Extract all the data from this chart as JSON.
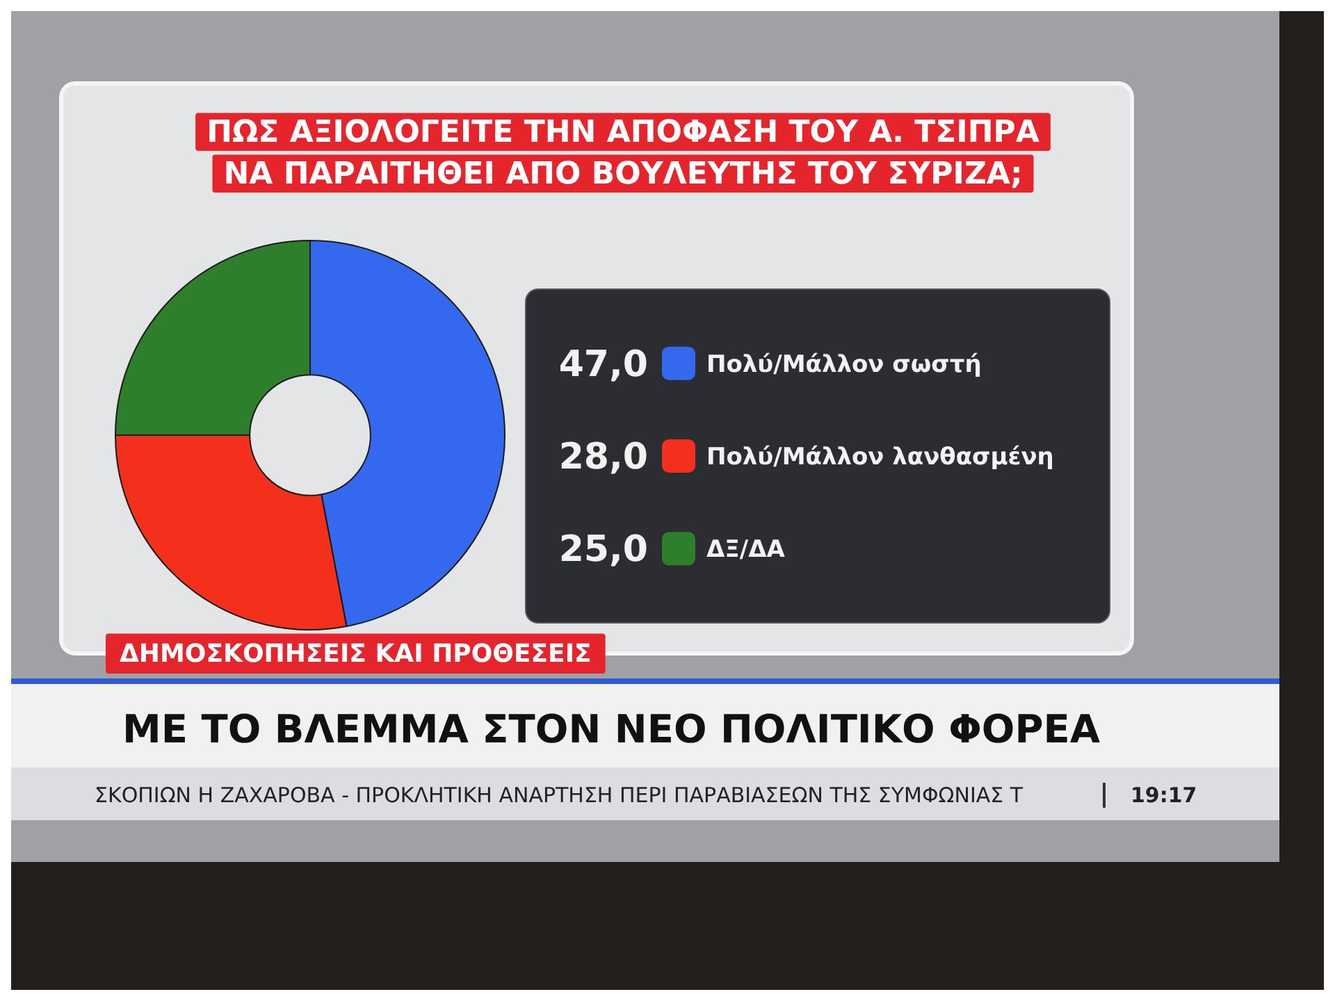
{
  "chart_data": {
    "type": "donut",
    "title": "ΠΩΣ ΑΞΙΟΛΟΓΕΙΤΕ ΤΗΝ ΑΠΟΦΑΣΗ ΤΟΥ Α. ΤΣΙΠΡΑ ΝΑ ΠΑΡΑΙΤΗΘΕΙ ΑΠΟ ΒΟΥΛΕΥΤΗΣ ΤΟΥ ΣΥΡΙΖΑ;",
    "categories": [
      "Πολύ/Μάλλον σωστή",
      "Πολύ/Μάλλον λανθασμένη",
      "ΔΞ/ΔΑ"
    ],
    "values": [
      47,
      28,
      25
    ],
    "value_labels": [
      "47,0",
      "28,0",
      "25,0"
    ],
    "colors": [
      "#3468ee",
      "#f4301d",
      "#2d7f2b"
    ],
    "legend": "right",
    "annotations": [
      "ΔΗΜΟΣΚΟΠΗΣΕΙΣ ΚΑΙ ΠΡΟΘΕΣΕΙΣ",
      "ΜΕ ΤΟ ΒΛΕΜΜΑ ΣΤΟΝ ΝΕΟ ΠΟΛΙΤΙΚΟ ΦΟΡΕΑ",
      "ΣΚΟΠΙΩΝ Η ΖΑΧΑΡΟΒΑ - ΠΡΟΚΛΗΤΙΚΗ ΑΝΑΡΤΗΣΗ ΠΕΡΙ ΠΑΡΑΒΙΑΣΕΩΝ ΤΗΣ ΣΥΜΦΩΝΙΑΣ Τ",
      "19:17"
    ]
  }
}
